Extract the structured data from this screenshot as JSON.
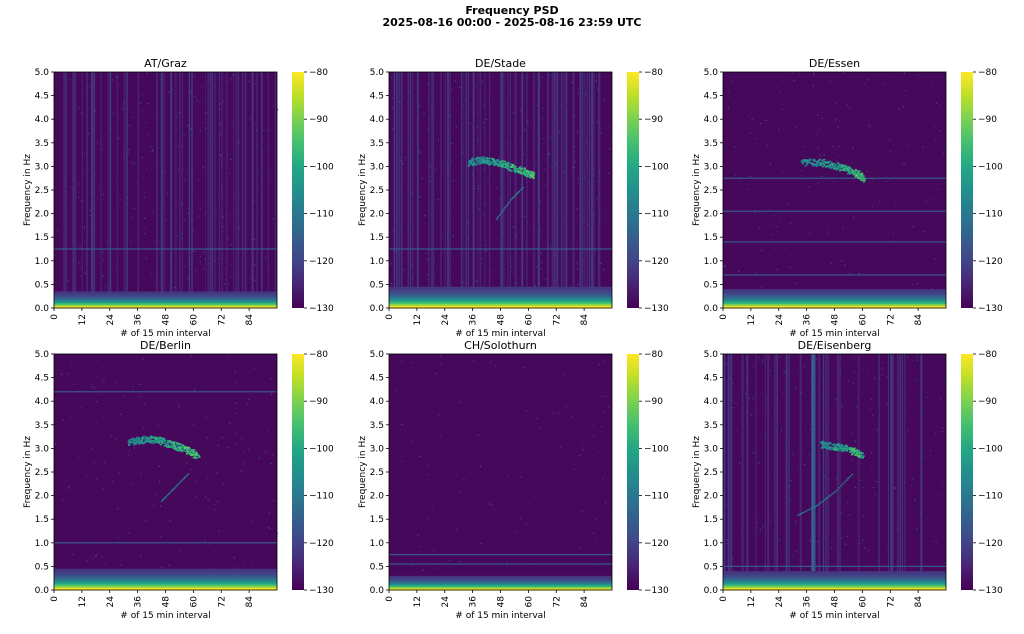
{
  "figure": {
    "title_line1": "Frequency PSD",
    "title_line2": "2025-08-16 00:00 - 2025-08-16 23:59 UTC"
  },
  "chart_data": [
    {
      "type": "heatmap",
      "title": "AT/Graz",
      "xlabel": "# of 15 min interval",
      "ylabel": "Frequency in Hz",
      "x_ticks": [
        0,
        12,
        24,
        36,
        48,
        60,
        72,
        84
      ],
      "y_ticks": [
        "0.0",
        "0.5",
        "1.0",
        "1.5",
        "2.0",
        "2.5",
        "3.0",
        "3.5",
        "4.0",
        "4.5",
        "5.0"
      ],
      "xlim": [
        0,
        96
      ],
      "ylim": [
        0,
        5.0
      ],
      "colorbar": {
        "min": -130,
        "max": -80,
        "ticks": [
          "−80",
          "−90",
          "−100",
          "−110",
          "−120",
          "−130"
        ]
      },
      "features": {
        "low_freq_band": [
          0,
          0.35
        ],
        "horizontal_lines_hz": [
          1.25,
          0.3
        ],
        "vertical_streaks": true,
        "noise_level": 0.45,
        "tremor_arc": null
      }
    },
    {
      "type": "heatmap",
      "title": "DE/Stade",
      "xlabel": "# of 15 min interval",
      "ylabel": "Frequency in Hz",
      "x_ticks": [
        0,
        12,
        24,
        36,
        48,
        60,
        72,
        84
      ],
      "y_ticks": [
        "0.0",
        "0.5",
        "1.0",
        "1.5",
        "2.0",
        "2.5",
        "3.0",
        "3.5",
        "4.0",
        "4.5",
        "5.0"
      ],
      "xlim": [
        0,
        96
      ],
      "ylim": [
        0,
        5.0
      ],
      "colorbar": {
        "min": -130,
        "max": -80,
        "ticks": [
          "−80",
          "−90",
          "−100",
          "−110",
          "−120",
          "−130"
        ]
      },
      "features": {
        "low_freq_band": [
          0,
          0.45
        ],
        "horizontal_lines_hz": [
          1.25,
          0.4
        ],
        "vertical_streaks": true,
        "noise_level": 0.5,
        "tremor_arc": {
          "points": [
            [
              34,
              3.1
            ],
            [
              40,
              3.15
            ],
            [
              46,
              3.1
            ],
            [
              52,
              3.0
            ],
            [
              58,
              2.9
            ],
            [
              62,
              2.8
            ]
          ],
          "branch": [
            [
              46,
              1.9
            ],
            [
              52,
              2.3
            ],
            [
              58,
              2.6
            ]
          ]
        }
      }
    },
    {
      "type": "heatmap",
      "title": "DE/Essen",
      "xlabel": "# of 15 min interval",
      "ylabel": "Frequency in Hz",
      "x_ticks": [
        0,
        12,
        24,
        36,
        48,
        60,
        72,
        84
      ],
      "y_ticks": [
        "0.0",
        "0.5",
        "1.0",
        "1.5",
        "2.0",
        "2.5",
        "3.0",
        "3.5",
        "4.0",
        "4.5",
        "5.0"
      ],
      "xlim": [
        0,
        96
      ],
      "ylim": [
        0,
        5.0
      ],
      "colorbar": {
        "min": -130,
        "max": -80,
        "ticks": [
          "−80",
          "−90",
          "−100",
          "−110",
          "−120",
          "−130"
        ]
      },
      "features": {
        "low_freq_band": [
          0,
          0.4
        ],
        "horizontal_lines_hz": [
          2.75,
          2.05,
          1.4,
          0.7
        ],
        "vertical_streaks": false,
        "noise_level": 0.2,
        "tremor_arc": {
          "points": [
            [
              34,
              3.1
            ],
            [
              42,
              3.1
            ],
            [
              50,
              3.0
            ],
            [
              56,
              2.9
            ],
            [
              61,
              2.75
            ]
          ],
          "branch": null
        }
      }
    },
    {
      "type": "heatmap",
      "title": "DE/Berlin",
      "xlabel": "# of 15 min interval",
      "ylabel": "Frequency in Hz",
      "x_ticks": [
        0,
        12,
        24,
        36,
        48,
        60,
        72,
        84
      ],
      "y_ticks": [
        "0.0",
        "0.5",
        "1.0",
        "1.5",
        "2.0",
        "2.5",
        "3.0",
        "3.5",
        "4.0",
        "4.5",
        "5.0"
      ],
      "xlim": [
        0,
        96
      ],
      "ylim": [
        0,
        5.0
      ],
      "colorbar": {
        "min": -130,
        "max": -80,
        "ticks": [
          "−80",
          "−90",
          "−100",
          "−110",
          "−120",
          "−130"
        ]
      },
      "features": {
        "low_freq_band": [
          0,
          0.45
        ],
        "horizontal_lines_hz": [
          4.2,
          1.0
        ],
        "vertical_streaks": false,
        "noise_level": 0.2,
        "tremor_arc": {
          "points": [
            [
              32,
              3.15
            ],
            [
              38,
              3.2
            ],
            [
              44,
              3.2
            ],
            [
              50,
              3.1
            ],
            [
              56,
              3.0
            ],
            [
              62,
              2.85
            ]
          ],
          "branch": [
            [
              46,
              1.9
            ],
            [
              52,
              2.2
            ],
            [
              58,
              2.5
            ]
          ]
        }
      }
    },
    {
      "type": "heatmap",
      "title": "CH/Solothurn",
      "xlabel": "# of 15 min interval",
      "ylabel": "Frequency in Hz",
      "x_ticks": [
        0,
        12,
        24,
        36,
        48,
        60,
        72,
        84
      ],
      "y_ticks": [
        "0.0",
        "0.5",
        "1.0",
        "1.5",
        "2.0",
        "2.5",
        "3.0",
        "3.5",
        "4.0",
        "4.5",
        "5.0"
      ],
      "xlim": [
        0,
        96
      ],
      "ylim": [
        0,
        5.0
      ],
      "colorbar": {
        "min": -130,
        "max": -80,
        "ticks": [
          "−80",
          "−90",
          "−100",
          "−110",
          "−120",
          "−130"
        ]
      },
      "features": {
        "low_freq_band": [
          0,
          0.3
        ],
        "horizontal_lines_hz": [
          0.75,
          0.55
        ],
        "vertical_streaks": false,
        "noise_level": 0.08,
        "tremor_arc": null
      }
    },
    {
      "type": "heatmap",
      "title": "DE/Eisenberg",
      "xlabel": "# of 15 min interval",
      "ylabel": "Frequency in Hz",
      "x_ticks": [
        0,
        12,
        24,
        36,
        48,
        60,
        72,
        84
      ],
      "y_ticks": [
        "0.0",
        "0.5",
        "1.0",
        "1.5",
        "2.0",
        "2.5",
        "3.0",
        "3.5",
        "4.0",
        "4.5",
        "5.0"
      ],
      "xlim": [
        0,
        96
      ],
      "ylim": [
        0,
        5.0
      ],
      "colorbar": {
        "min": -130,
        "max": -80,
        "ticks": [
          "−80",
          "−90",
          "−100",
          "−110",
          "−120",
          "−130"
        ]
      },
      "features": {
        "low_freq_band": [
          0,
          0.4
        ],
        "horizontal_lines_hz": [
          0.5
        ],
        "vertical_streaks": true,
        "vertical_streak_column": 38,
        "noise_level": 0.3,
        "tremor_arc": {
          "points": [
            [
              42,
              3.1
            ],
            [
              48,
              3.05
            ],
            [
              54,
              3.0
            ],
            [
              60,
              2.85
            ]
          ],
          "branch": [
            [
              32,
              1.6
            ],
            [
              40,
              1.8
            ],
            [
              48,
              2.1
            ],
            [
              56,
              2.5
            ]
          ]
        }
      }
    }
  ]
}
